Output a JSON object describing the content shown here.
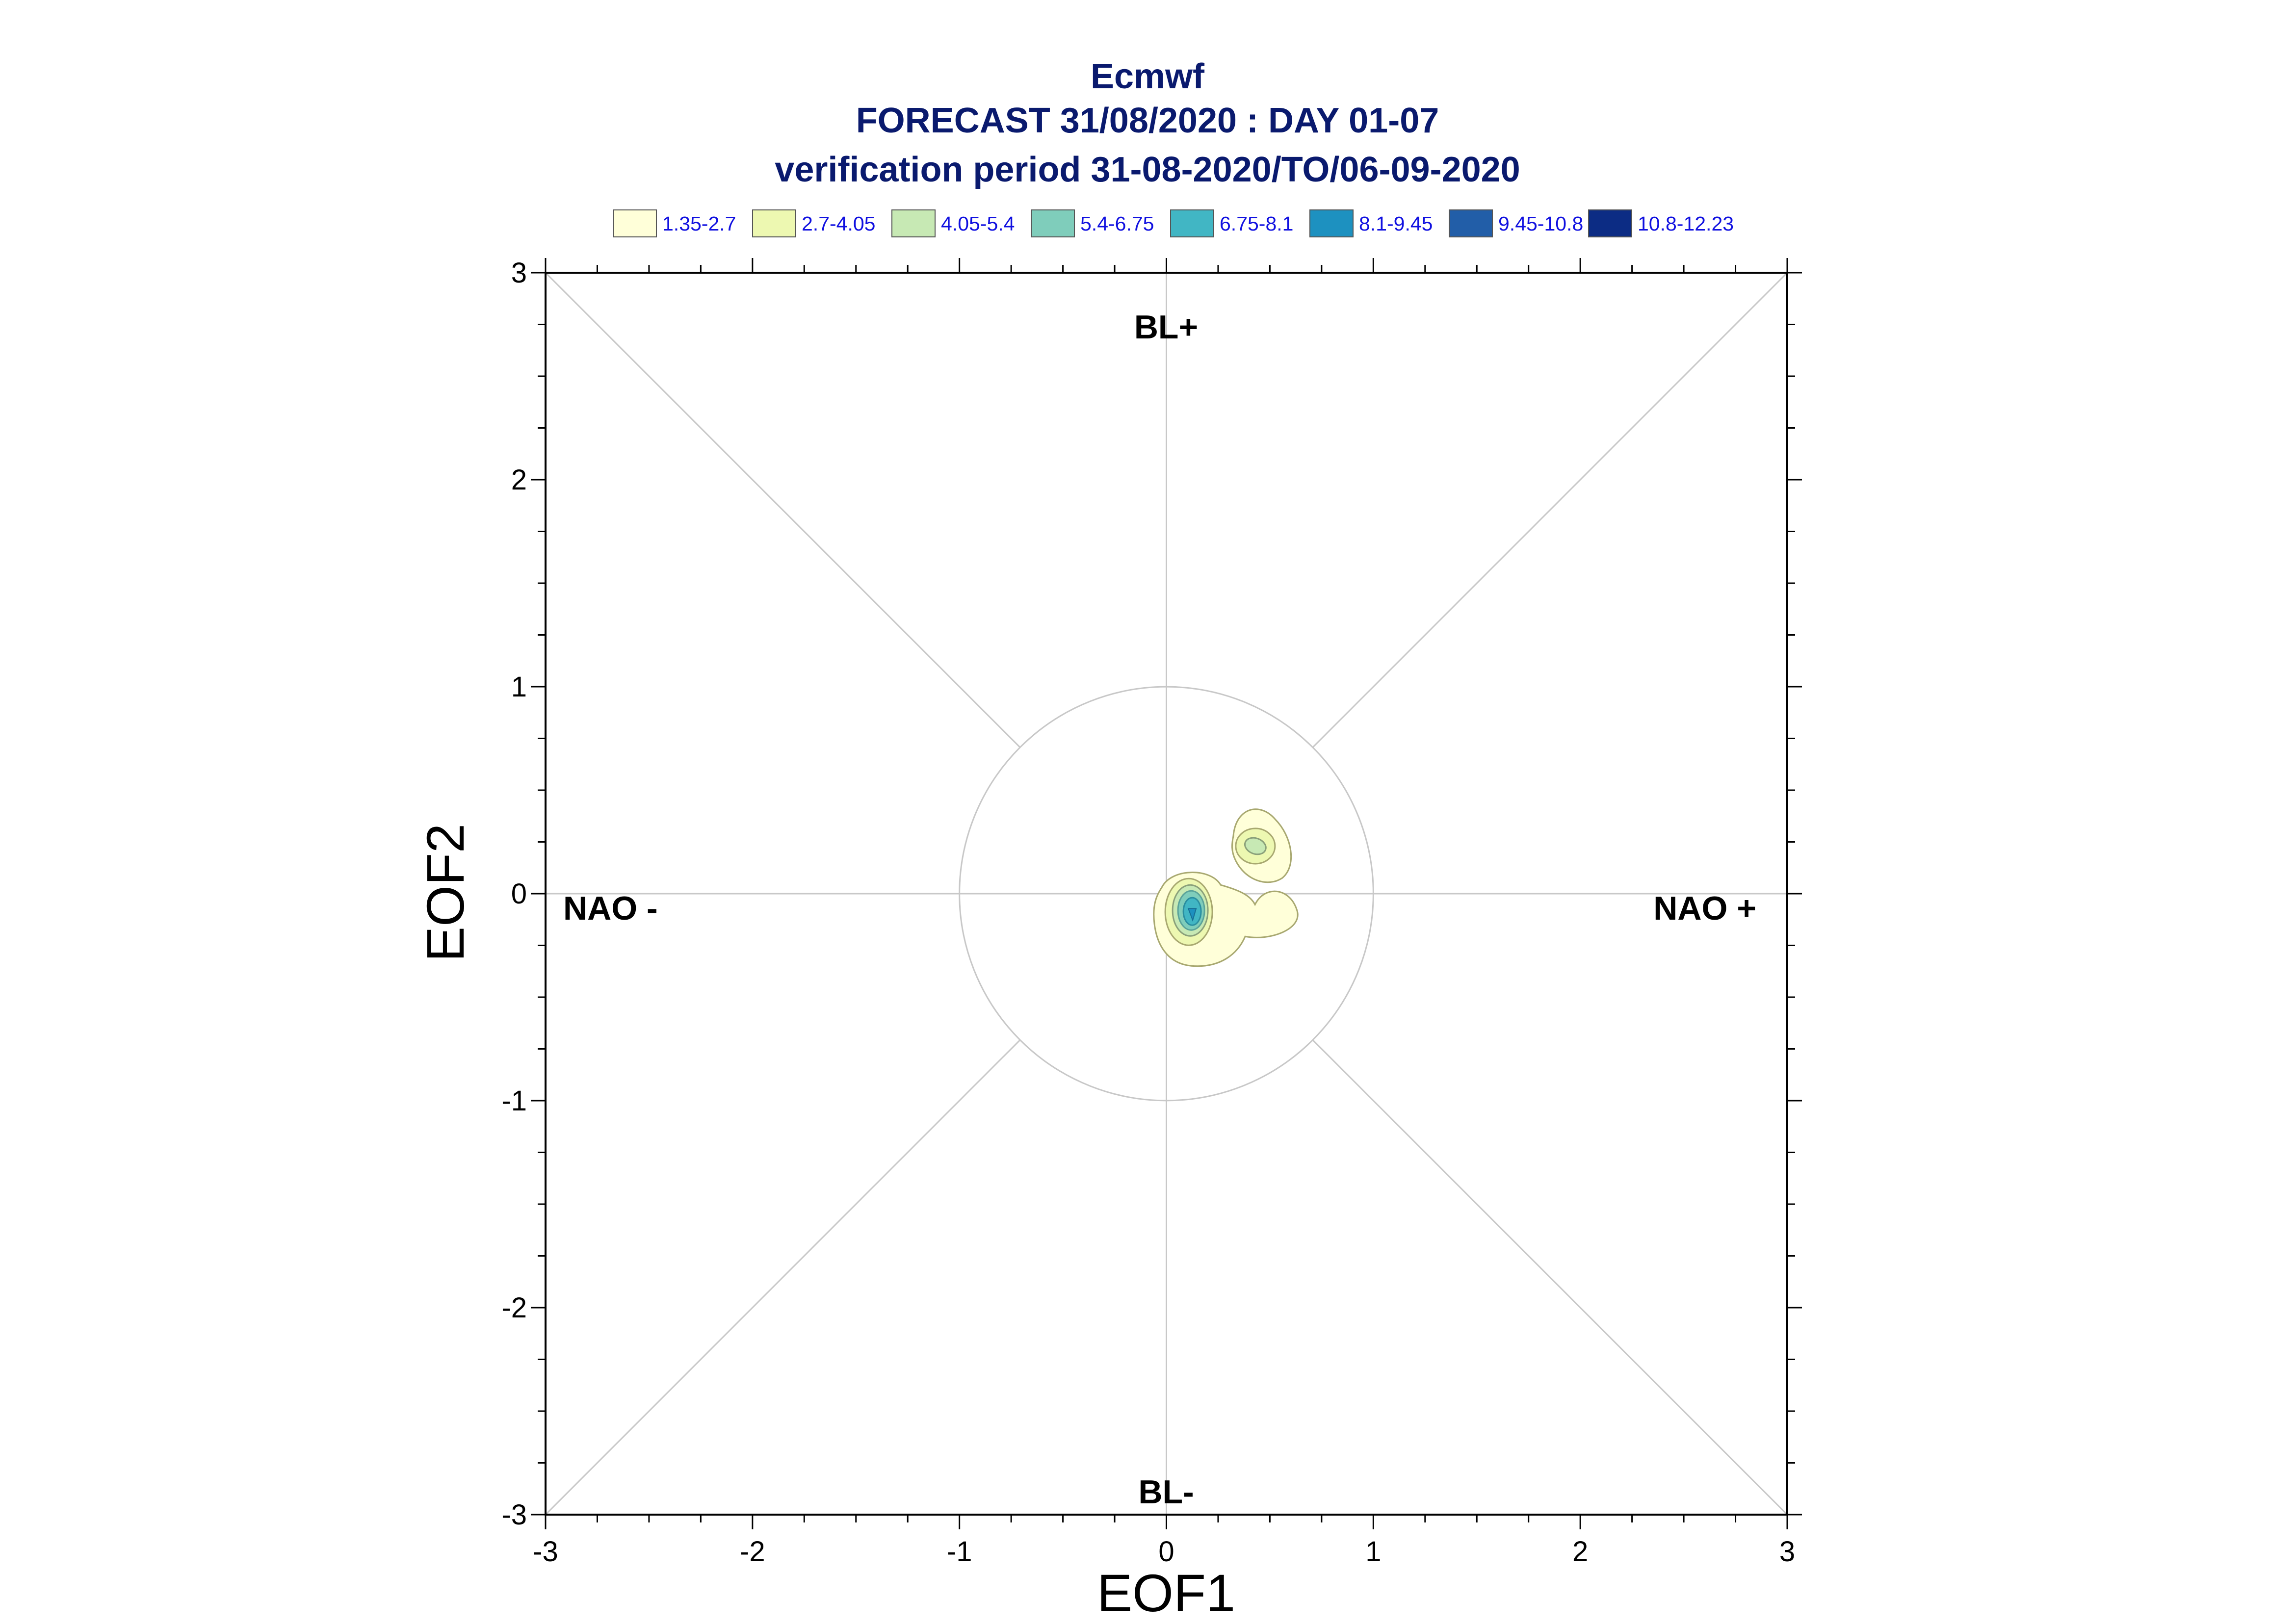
{
  "chart_data": {
    "type": "contour",
    "title_lines": [
      "Ecmwf",
      "FORECAST 31/08/2020 : DAY 01-07",
      "verification period 31-08-2020/TO/06-09-2020"
    ],
    "xlabel": "EOF1",
    "ylabel": "EOF2",
    "xlim": [
      -3,
      3
    ],
    "ylim": [
      -3,
      3
    ],
    "xticks": [
      -3,
      -2,
      -1,
      0,
      1,
      2,
      3
    ],
    "yticks": [
      -3,
      -2,
      -1,
      0,
      1,
      2,
      3
    ],
    "region_labels": {
      "top": "BL+",
      "bottom": "BL-",
      "left": "NAO -",
      "right": "NAO +"
    },
    "reference_circle_radius": 1,
    "legend": [
      {
        "label": "1.35-2.7",
        "color": "#ffffd9"
      },
      {
        "label": "2.7-4.05",
        "color": "#edf8b1"
      },
      {
        "label": "4.05-5.4",
        "color": "#c7e9b4"
      },
      {
        "label": "5.4-6.75",
        "color": "#7fcdbb"
      },
      {
        "label": "6.75-8.1",
        "color": "#41b6c4"
      },
      {
        "label": "8.1-9.45",
        "color": "#1d91c0"
      },
      {
        "label": "9.45-10.8",
        "color": "#225ea8"
      },
      {
        "label": "10.8-12.23",
        "color": "#0c2c84"
      }
    ],
    "density_centers": [
      {
        "x": 0.12,
        "y": -0.1,
        "peak_level": "6.75-8.1"
      },
      {
        "x": 0.43,
        "y": 0.23,
        "peak_level": "4.05-5.4"
      },
      {
        "x": 0.35,
        "y": -0.1,
        "peak_level": "1.35-2.7"
      }
    ]
  }
}
